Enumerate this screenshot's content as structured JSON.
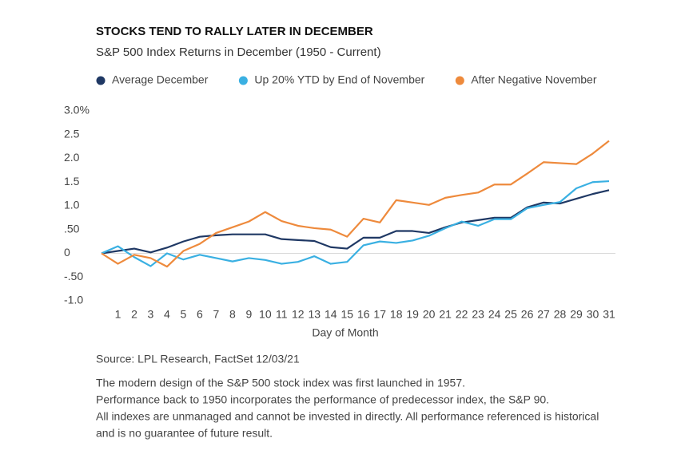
{
  "chart_data": {
    "type": "line",
    "title": "STOCKS TEND TO RALLY LATER IN DECEMBER",
    "subtitle": "S&P 500 Index Returns in December (1950 - Current)",
    "x_label": "Day of Month",
    "x": [
      0,
      1,
      2,
      3,
      4,
      5,
      6,
      7,
      8,
      9,
      10,
      11,
      12,
      13,
      14,
      15,
      16,
      17,
      18,
      19,
      20,
      21,
      22,
      23,
      24,
      25,
      26,
      27,
      28,
      29,
      30,
      31
    ],
    "xlim": [
      0,
      31
    ],
    "xticks": [
      1,
      2,
      3,
      4,
      5,
      6,
      7,
      8,
      9,
      10,
      11,
      12,
      13,
      14,
      15,
      16,
      17,
      18,
      19,
      20,
      21,
      22,
      23,
      24,
      25,
      26,
      27,
      28,
      29,
      30,
      31
    ],
    "ylim": [
      -1,
      3
    ],
    "yticks": [
      {
        "value": 3,
        "label": "3.0%"
      },
      2.5,
      {
        "value": 2,
        "label": "2.0"
      },
      1.5,
      {
        "value": 1,
        "label": "1.0"
      },
      {
        "value": 0.5,
        "label": ".50"
      },
      0,
      {
        "value": -0.5,
        "label": "-.50"
      },
      {
        "value": -1,
        "label": "-1.0"
      }
    ],
    "series": [
      {
        "name": "Average December",
        "color": "#1f3864",
        "values": [
          0,
          0.05,
          0.1,
          0.02,
          0.12,
          0.25,
          0.35,
          0.38,
          0.4,
          0.4,
          0.4,
          0.3,
          0.28,
          0.26,
          0.13,
          0.1,
          0.33,
          0.33,
          0.47,
          0.47,
          0.43,
          0.55,
          0.65,
          0.7,
          0.75,
          0.75,
          0.97,
          1.07,
          1.05,
          1.15,
          1.25,
          1.33
        ]
      },
      {
        "name": "Up 20% YTD by End of November",
        "color": "#3ab0e2",
        "values": [
          0,
          0.15,
          -0.08,
          -0.27,
          0,
          -0.13,
          -0.03,
          -0.1,
          -0.17,
          -0.1,
          -0.14,
          -0.22,
          -0.18,
          -0.06,
          -0.22,
          -0.18,
          0.17,
          0.25,
          0.22,
          0.27,
          0.37,
          0.53,
          0.67,
          0.58,
          0.72,
          0.72,
          0.95,
          1.02,
          1.08,
          1.37,
          1.5,
          1.52
        ]
      },
      {
        "name": "After Negative November",
        "color": "#ee8a3c",
        "values": [
          0,
          -0.22,
          -0.03,
          -0.1,
          -0.28,
          0.05,
          0.2,
          0.43,
          0.55,
          0.67,
          0.87,
          0.68,
          0.58,
          0.53,
          0.5,
          0.35,
          0.73,
          0.65,
          1.12,
          1.07,
          1.02,
          1.17,
          1.23,
          1.28,
          1.45,
          1.45,
          1.68,
          1.92,
          1.9,
          1.88,
          2.1,
          2.37
        ]
      }
    ],
    "source": "Source: LPL Research, FactSet  12/03/21",
    "notes": [
      "The modern design of the S&P 500 stock index was first launched in 1957.",
      "Performance back to 1950 incorporates the performance of predecessor index, the S&P 90.",
      "All indexes are unmanaged and cannot be invested in directly. All performance referenced is historical",
      "and is no guarantee of future result."
    ]
  }
}
